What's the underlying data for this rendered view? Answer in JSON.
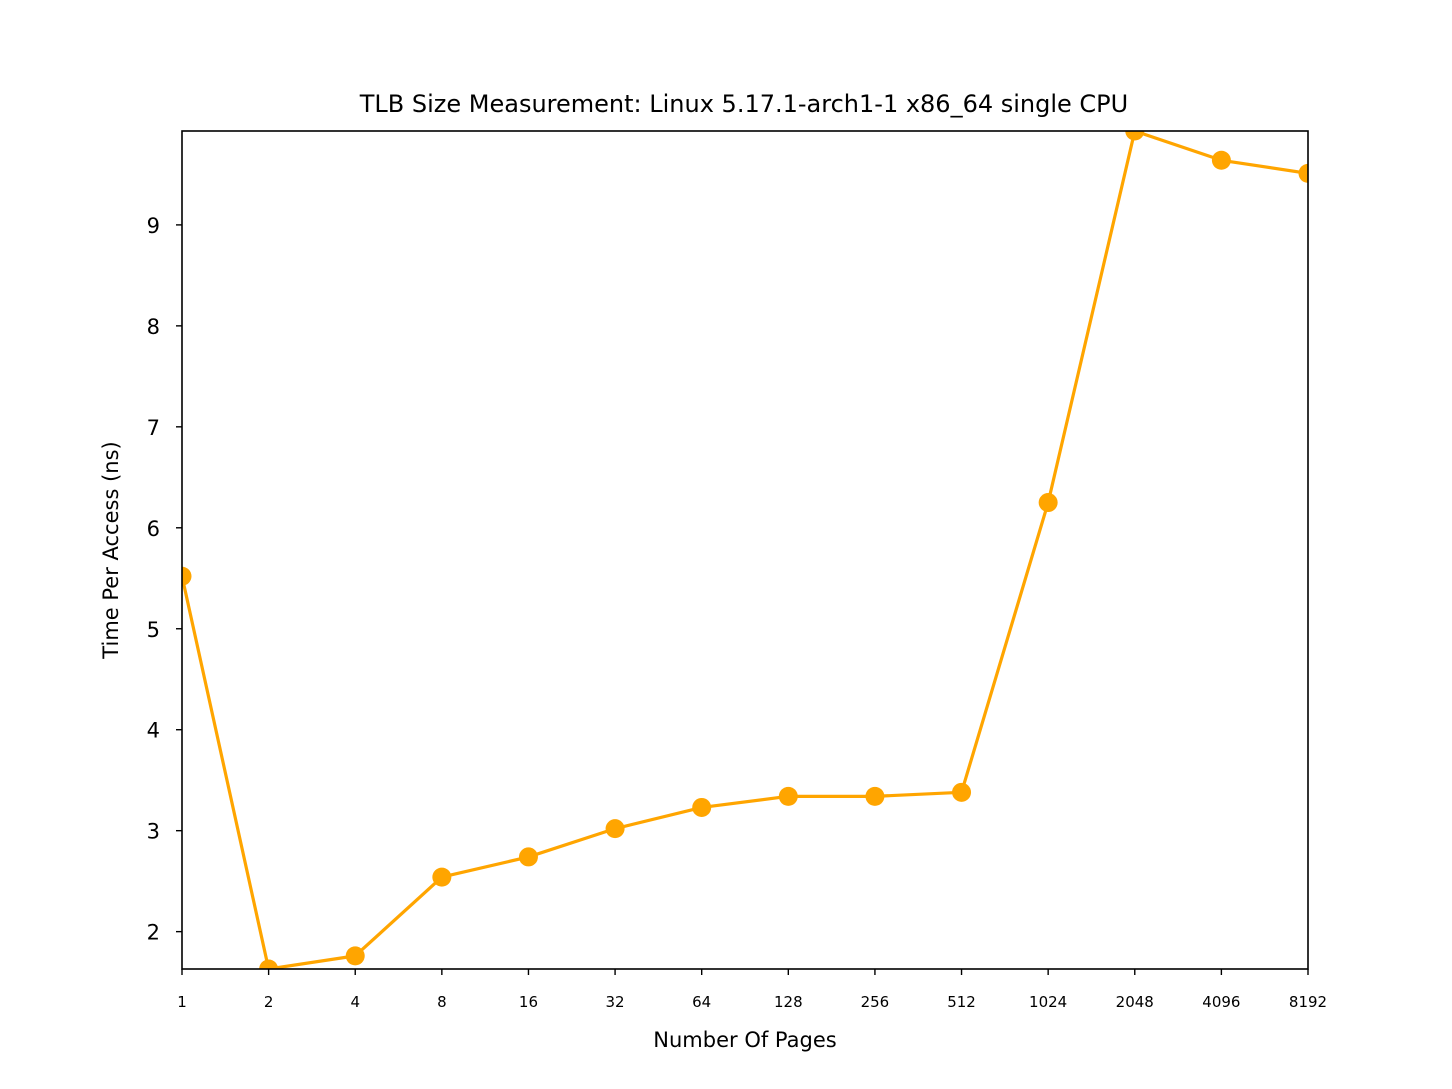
{
  "chart_data": {
    "type": "line",
    "title": "TLB Size Measurement: Linux 5.17.1-arch1-1 x86_64 single CPU",
    "xlabel": "Number Of Pages",
    "ylabel": "Time Per Access (ns)",
    "x_scale": "log2",
    "categories": [
      "1",
      "2",
      "4",
      "8",
      "16",
      "32",
      "64",
      "128",
      "256",
      "512",
      "1024",
      "2048",
      "4096",
      "8192"
    ],
    "x": [
      1,
      2,
      4,
      8,
      16,
      32,
      64,
      128,
      256,
      512,
      1024,
      2048,
      4096,
      8192
    ],
    "yticks": [
      "2",
      "3",
      "4",
      "5",
      "6",
      "7",
      "8",
      "9"
    ],
    "ylim": [
      1.63,
      9.93
    ],
    "series": [
      {
        "color": "#ffa500",
        "marker": "circle",
        "values": [
          5.52,
          1.63,
          1.76,
          2.54,
          2.74,
          3.02,
          3.23,
          3.34,
          3.34,
          3.38,
          6.25,
          9.93,
          9.64,
          9.51
        ]
      }
    ],
    "grid": false,
    "legend": "none"
  }
}
